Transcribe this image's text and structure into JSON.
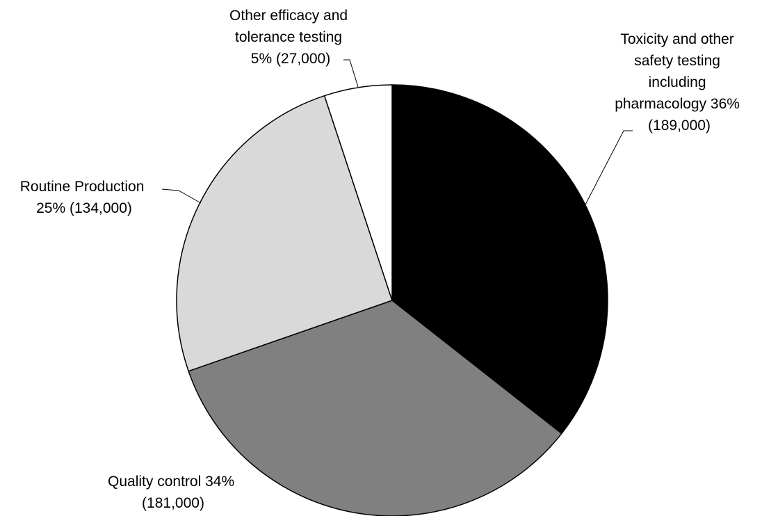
{
  "chart_data": {
    "type": "pie",
    "title": "",
    "slices": [
      {
        "name": "Toxicity and other safety testing including pharmacology",
        "percent": 36,
        "value": 189000,
        "color": "#000000",
        "label_lines": [
          "Toxicity and other",
          "safety testing",
          "including",
          "pharmacology 36%",
          "(189,000)"
        ]
      },
      {
        "name": "Quality control",
        "percent": 34,
        "value": 181000,
        "color": "#808080",
        "label_lines": [
          "Quality control 34%",
          "(181,000)"
        ]
      },
      {
        "name": "Routine Production",
        "percent": 25,
        "value": 134000,
        "color": "#d9d9d9",
        "label_lines": [
          "Routine Production",
          "25% (134,000)"
        ]
      },
      {
        "name": "Other efficacy and tolerance testing",
        "percent": 5,
        "value": 27000,
        "color": "#ffffff",
        "label_lines": [
          "Other efficacy and",
          "tolerance testing",
          "5% (27,000)"
        ]
      }
    ],
    "start_angle": "12 o'clock",
    "direction": "clockwise",
    "legend": "none"
  }
}
